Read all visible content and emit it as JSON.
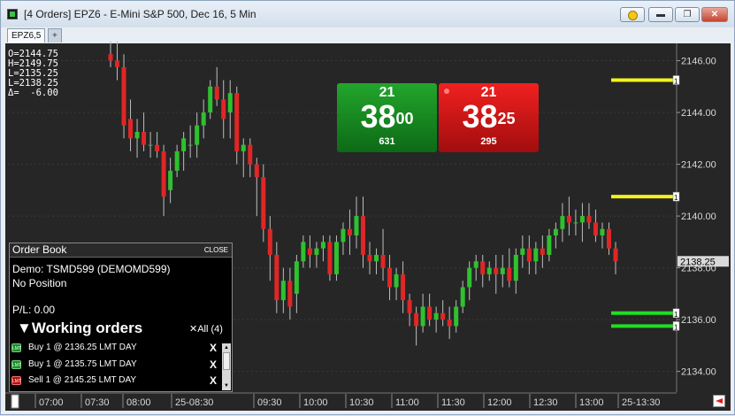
{
  "window": {
    "title": "[4 Orders]  EPZ6 - E-Mini S&P 500, Dec 16, 5 Min"
  },
  "tabs": [
    {
      "label": "EPZ6,5"
    },
    {
      "label": "+"
    }
  ],
  "ohlc": {
    "open": "O=2144.75",
    "high": "H=2149.75",
    "low": "L=2135.25",
    "last": "L=2138.25",
    "delta": "Δ=  -6.00"
  },
  "price_ladder": {
    "bid": {
      "size": "21",
      "price_major": "38",
      "price_minor": "00",
      "volume": "631"
    },
    "ask": {
      "size": "21",
      "price_major": "38",
      "price_minor": "25",
      "volume": "295"
    }
  },
  "order_book": {
    "title": "Order Book",
    "close_label": "CLOSE",
    "account": "Demo: TSMD599 (DEMOMD599)",
    "position": "No Position",
    "pnl": "P/L: 0.00",
    "working_title": "▼Working orders",
    "cancel_all": "✕All (4)",
    "orders": [
      {
        "badge": "LMT",
        "side": "buy",
        "text": "Buy  1  @  2136.25  LMT DAY",
        "cancel": "X"
      },
      {
        "badge": "LMT",
        "side": "buy",
        "text": "Buy  1  @  2135.75  LMT DAY",
        "cancel": "X"
      },
      {
        "badge": "LMT",
        "side": "sell",
        "text": "Sell  1  @  2145.25  LMT DAY",
        "cancel": "X"
      }
    ]
  },
  "colors": {
    "up": "#2fc12f",
    "down": "#e02626",
    "background": "#262626",
    "sell_order_line": "#f2f21a",
    "buy_order_line": "#22dd22"
  },
  "chart_data": {
    "type": "candlestick",
    "y_axis": {
      "range": [
        2133.2,
        2146.6
      ],
      "ticks": [
        "2146.00",
        "2144.00",
        "2142.00",
        "2140.00",
        "2138.00",
        "2136.00",
        "2134.00"
      ],
      "last_price_label": "2138.25"
    },
    "x_axis": {
      "labels": [
        "07:00",
        "07:30",
        "08:00",
        "25-08:30",
        "09:30",
        "10:00",
        "10:30",
        "11:00",
        "11:30",
        "12:00",
        "12:30",
        "13:00",
        "25-13:30"
      ]
    },
    "order_lines": [
      {
        "side": "sell",
        "price": 2145.25,
        "marker": "1"
      },
      {
        "side": "sell",
        "price": 2140.75,
        "marker": "1"
      },
      {
        "side": "buy",
        "price": 2136.25,
        "marker": "1"
      },
      {
        "side": "buy",
        "price": 2135.75,
        "marker": "1"
      }
    ],
    "candles": [
      {
        "o": 2146.25,
        "h": 2146.75,
        "l": 2145.75,
        "c": 2146.0
      },
      {
        "o": 2146.0,
        "h": 2146.75,
        "l": 2145.25,
        "c": 2145.75
      },
      {
        "o": 2145.75,
        "h": 2146.25,
        "l": 2143.0,
        "c": 2143.5
      },
      {
        "o": 2143.75,
        "h": 2144.5,
        "l": 2142.5,
        "c": 2143.0
      },
      {
        "o": 2143.0,
        "h": 2143.75,
        "l": 2142.25,
        "c": 2143.25
      },
      {
        "o": 2143.25,
        "h": 2144.0,
        "l": 2142.5,
        "c": 2142.75
      },
      {
        "o": 2142.75,
        "h": 2143.25,
        "l": 2142.25,
        "c": 2142.75
      },
      {
        "o": 2142.75,
        "h": 2143.25,
        "l": 2142.25,
        "c": 2142.5
      },
      {
        "o": 2142.5,
        "h": 2142.75,
        "l": 2140.0,
        "c": 2140.75
      },
      {
        "o": 2141.0,
        "h": 2142.25,
        "l": 2140.5,
        "c": 2141.75
      },
      {
        "o": 2141.75,
        "h": 2142.75,
        "l": 2141.5,
        "c": 2142.5
      },
      {
        "o": 2142.5,
        "h": 2143.25,
        "l": 2141.75,
        "c": 2143.0
      },
      {
        "o": 2142.75,
        "h": 2143.5,
        "l": 2142.25,
        "c": 2142.75
      },
      {
        "o": 2142.75,
        "h": 2144.0,
        "l": 2142.25,
        "c": 2143.5
      },
      {
        "o": 2143.5,
        "h": 2144.5,
        "l": 2143.0,
        "c": 2144.0
      },
      {
        "o": 2144.0,
        "h": 2145.25,
        "l": 2143.75,
        "c": 2145.0
      },
      {
        "o": 2145.0,
        "h": 2145.75,
        "l": 2144.25,
        "c": 2144.5
      },
      {
        "o": 2144.5,
        "h": 2145.25,
        "l": 2143.0,
        "c": 2143.75
      },
      {
        "o": 2144.0,
        "h": 2145.25,
        "l": 2143.0,
        "c": 2144.75
      },
      {
        "o": 2144.75,
        "h": 2145.0,
        "l": 2142.0,
        "c": 2142.5
      },
      {
        "o": 2142.5,
        "h": 2143.0,
        "l": 2141.5,
        "c": 2142.75
      },
      {
        "o": 2142.75,
        "h": 2143.0,
        "l": 2141.5,
        "c": 2142.0
      },
      {
        "o": 2142.0,
        "h": 2142.25,
        "l": 2140.0,
        "c": 2141.5
      },
      {
        "o": 2141.5,
        "h": 2142.0,
        "l": 2139.0,
        "c": 2139.5
      },
      {
        "o": 2139.5,
        "h": 2140.0,
        "l": 2137.5,
        "c": 2138.5
      },
      {
        "o": 2138.5,
        "h": 2139.0,
        "l": 2136.25,
        "c": 2136.75
      },
      {
        "o": 2136.75,
        "h": 2138.0,
        "l": 2136.25,
        "c": 2137.5
      },
      {
        "o": 2137.5,
        "h": 2138.0,
        "l": 2136.0,
        "c": 2136.5
      },
      {
        "o": 2137.0,
        "h": 2138.5,
        "l": 2136.25,
        "c": 2138.25
      },
      {
        "o": 2138.25,
        "h": 2139.25,
        "l": 2138.0,
        "c": 2139.0
      },
      {
        "o": 2138.75,
        "h": 2139.25,
        "l": 2138.0,
        "c": 2138.5
      },
      {
        "o": 2138.5,
        "h": 2139.0,
        "l": 2138.0,
        "c": 2138.75
      },
      {
        "o": 2138.75,
        "h": 2139.25,
        "l": 2138.25,
        "c": 2139.0
      },
      {
        "o": 2139.0,
        "h": 2139.25,
        "l": 2137.5,
        "c": 2137.75
      },
      {
        "o": 2137.75,
        "h": 2139.25,
        "l": 2137.5,
        "c": 2139.0
      },
      {
        "o": 2139.0,
        "h": 2139.75,
        "l": 2138.5,
        "c": 2139.5
      },
      {
        "o": 2139.5,
        "h": 2140.25,
        "l": 2138.5,
        "c": 2139.25
      },
      {
        "o": 2139.25,
        "h": 2140.75,
        "l": 2138.75,
        "c": 2140.0
      },
      {
        "o": 2140.0,
        "h": 2140.75,
        "l": 2138.0,
        "c": 2138.5
      },
      {
        "o": 2138.5,
        "h": 2139.0,
        "l": 2137.75,
        "c": 2138.25
      },
      {
        "o": 2138.25,
        "h": 2138.75,
        "l": 2137.75,
        "c": 2138.5
      },
      {
        "o": 2138.5,
        "h": 2139.5,
        "l": 2137.5,
        "c": 2138.0
      },
      {
        "o": 2138.0,
        "h": 2138.5,
        "l": 2136.75,
        "c": 2137.25
      },
      {
        "o": 2137.25,
        "h": 2138.0,
        "l": 2136.75,
        "c": 2137.75
      },
      {
        "o": 2137.75,
        "h": 2138.25,
        "l": 2136.25,
        "c": 2136.75
      },
      {
        "o": 2136.75,
        "h": 2137.0,
        "l": 2135.75,
        "c": 2136.25
      },
      {
        "o": 2136.25,
        "h": 2136.5,
        "l": 2135.0,
        "c": 2135.75
      },
      {
        "o": 2135.75,
        "h": 2137.0,
        "l": 2135.5,
        "c": 2136.5
      },
      {
        "o": 2136.5,
        "h": 2137.0,
        "l": 2135.75,
        "c": 2136.0
      },
      {
        "o": 2136.0,
        "h": 2136.5,
        "l": 2135.5,
        "c": 2136.25
      },
      {
        "o": 2136.25,
        "h": 2136.75,
        "l": 2135.75,
        "c": 2136.0
      },
      {
        "o": 2136.0,
        "h": 2136.5,
        "l": 2135.25,
        "c": 2135.75
      },
      {
        "o": 2135.75,
        "h": 2136.75,
        "l": 2135.5,
        "c": 2136.5
      },
      {
        "o": 2136.5,
        "h": 2137.5,
        "l": 2136.25,
        "c": 2137.25
      },
      {
        "o": 2137.25,
        "h": 2138.25,
        "l": 2136.75,
        "c": 2138.0
      },
      {
        "o": 2138.0,
        "h": 2138.5,
        "l": 2137.5,
        "c": 2138.25
      },
      {
        "o": 2138.25,
        "h": 2138.5,
        "l": 2137.25,
        "c": 2137.75
      },
      {
        "o": 2137.75,
        "h": 2138.25,
        "l": 2137.5,
        "c": 2138.0
      },
      {
        "o": 2138.0,
        "h": 2138.5,
        "l": 2137.0,
        "c": 2137.75
      },
      {
        "o": 2137.75,
        "h": 2138.5,
        "l": 2137.25,
        "c": 2138.0
      },
      {
        "o": 2138.0,
        "h": 2138.75,
        "l": 2137.25,
        "c": 2137.5
      },
      {
        "o": 2137.5,
        "h": 2138.75,
        "l": 2137.0,
        "c": 2138.5
      },
      {
        "o": 2138.5,
        "h": 2139.25,
        "l": 2138.0,
        "c": 2138.75
      },
      {
        "o": 2138.75,
        "h": 2139.25,
        "l": 2137.75,
        "c": 2138.25
      },
      {
        "o": 2138.25,
        "h": 2139.0,
        "l": 2137.75,
        "c": 2138.75
      },
      {
        "o": 2138.75,
        "h": 2139.25,
        "l": 2138.0,
        "c": 2138.5
      },
      {
        "o": 2138.5,
        "h": 2139.5,
        "l": 2138.25,
        "c": 2139.25
      },
      {
        "o": 2139.25,
        "h": 2139.75,
        "l": 2138.75,
        "c": 2139.5
      },
      {
        "o": 2139.5,
        "h": 2140.5,
        "l": 2139.0,
        "c": 2140.0
      },
      {
        "o": 2140.0,
        "h": 2140.75,
        "l": 2139.25,
        "c": 2139.75
      },
      {
        "o": 2139.75,
        "h": 2140.25,
        "l": 2139.25,
        "c": 2139.75
      },
      {
        "o": 2139.75,
        "h": 2140.5,
        "l": 2139.0,
        "c": 2140.0
      },
      {
        "o": 2140.0,
        "h": 2140.5,
        "l": 2139.5,
        "c": 2139.75
      },
      {
        "o": 2139.75,
        "h": 2140.25,
        "l": 2139.0,
        "c": 2139.25
      },
      {
        "o": 2139.25,
        "h": 2139.75,
        "l": 2138.75,
        "c": 2139.5
      },
      {
        "o": 2139.5,
        "h": 2139.75,
        "l": 2138.5,
        "c": 2138.75
      },
      {
        "o": 2138.75,
        "h": 2139.0,
        "l": 2137.75,
        "c": 2138.25
      }
    ]
  }
}
